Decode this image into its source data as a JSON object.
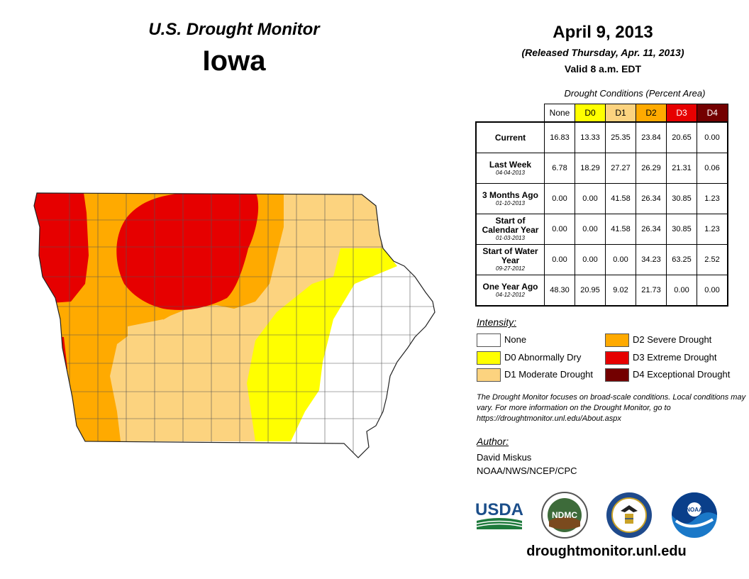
{
  "header": {
    "subtitle": "U.S. Drought Monitor",
    "state": "Iowa",
    "date": "April 9, 2013",
    "released": "(Released Thursday, Apr. 11, 2013)",
    "valid": "Valid 8 a.m. EDT"
  },
  "table": {
    "caption": "Drought Conditions (Percent Area)",
    "columns": [
      {
        "label": "None",
        "color": "#ffffff"
      },
      {
        "label": "D0",
        "color": "#ffff00"
      },
      {
        "label": "D1",
        "color": "#fcd37f"
      },
      {
        "label": "D2",
        "color": "#ffaa00"
      },
      {
        "label": "D3",
        "color": "#e60000"
      },
      {
        "label": "D4",
        "color": "#730000"
      }
    ],
    "rows": [
      {
        "label": "Current",
        "date": "",
        "values": [
          "16.83",
          "13.33",
          "25.35",
          "23.84",
          "20.65",
          "0.00"
        ]
      },
      {
        "label": "Last Week",
        "date": "04-04-2013",
        "values": [
          "6.78",
          "18.29",
          "27.27",
          "26.29",
          "21.31",
          "0.06"
        ]
      },
      {
        "label": "3 Months Ago",
        "date": "01-10-2013",
        "values": [
          "0.00",
          "0.00",
          "41.58",
          "26.34",
          "30.85",
          "1.23"
        ]
      },
      {
        "label": "Start of Calendar Year",
        "date": "01-03-2013",
        "values": [
          "0.00",
          "0.00",
          "41.58",
          "26.34",
          "30.85",
          "1.23"
        ]
      },
      {
        "label": "Start of Water Year",
        "date": "09-27-2012",
        "values": [
          "0.00",
          "0.00",
          "0.00",
          "34.23",
          "63.25",
          "2.52"
        ]
      },
      {
        "label": "One Year Ago",
        "date": "04-12-2012",
        "values": [
          "48.30",
          "20.95",
          "9.02",
          "21.73",
          "0.00",
          "0.00"
        ]
      }
    ]
  },
  "legend": {
    "title": "Intensity:",
    "items": [
      {
        "label": "None",
        "color": "#ffffff"
      },
      {
        "label": "D0 Abnormally Dry",
        "color": "#ffff00"
      },
      {
        "label": "D1 Moderate Drought",
        "color": "#fcd37f"
      },
      {
        "label": "D2 Severe Drought",
        "color": "#ffaa00"
      },
      {
        "label": "D3 Extreme Drought",
        "color": "#e60000"
      },
      {
        "label": "D4 Exceptional Drought",
        "color": "#730000"
      }
    ]
  },
  "note": "The Drought Monitor focuses on broad-scale conditions. Local conditions may vary. For more information on the Drought Monitor, go to https://droughtmonitor.unl.edu/About.aspx",
  "author": {
    "title": "Author:",
    "name": "David Miskus",
    "org": "NOAA/NWS/NCEP/CPC"
  },
  "logos": {
    "usda": "USDA",
    "ndmc": "NDMC",
    "noaa": "NOAA"
  },
  "footer_url": "droughtmonitor.unl.edu"
}
